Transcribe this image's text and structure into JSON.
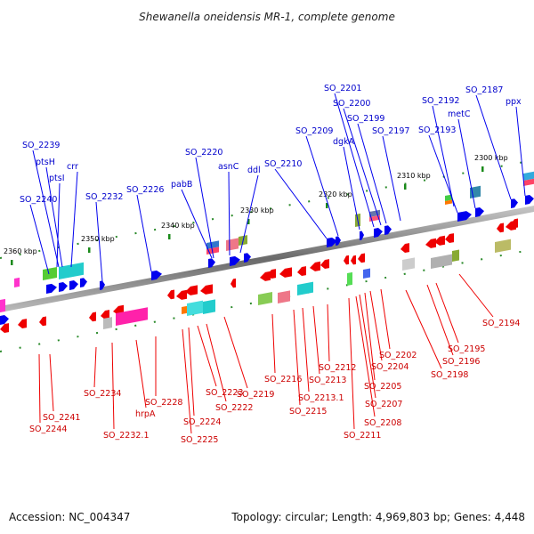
{
  "title": "Shewanella oneidensis MR-1, complete genome",
  "footer": {
    "accession": "Accession: NC_004347",
    "info": "Topology: circular; Length: 4,969,803 bp; Genes: 4,448"
  },
  "colors": {
    "forward_gene": "#0000ee",
    "reverse_gene": "#ee0000",
    "forward_label": "#0000cc",
    "reverse_label": "#cc0000",
    "backbone": "#808080",
    "tick": "#1a8a1a"
  },
  "ticks": [
    "2360 kbp",
    "2350 kbp",
    "2340 kbp",
    "2330 kbp",
    "2320 kbp",
    "2310 kbp",
    "2300 kbp"
  ],
  "forward_labels": [
    "SO_2240",
    "ptsI",
    "crr",
    "ptsH",
    "SO_2239",
    "SO_2232",
    "SO_2226",
    "pabB",
    "SO_2220",
    "asnC",
    "ddl",
    "SO_2210",
    "SO_2209",
    "dgkA",
    "SO_2201",
    "SO_2200",
    "SO_2199",
    "SO_2197",
    "SO_2193",
    "SO_2192",
    "metC",
    "SO_2187",
    "ppx"
  ],
  "reverse_labels": [
    "SO_2244",
    "SO_2241",
    "SO_2234",
    "SO_2232.1",
    "hrpA",
    "SO_2228",
    "SO_2225",
    "SO_2224",
    "SO_2223",
    "SO_2222",
    "SO_2219",
    "SO_2216",
    "SO_2215",
    "SO_2213.1",
    "SO_2213",
    "SO_2212",
    "SO_2211",
    "SO_2208",
    "SO_2207",
    "SO_2205",
    "SO_2204",
    "SO_2202",
    "SO_2198",
    "SO_2196",
    "SO_2195",
    "SO_2194"
  ]
}
